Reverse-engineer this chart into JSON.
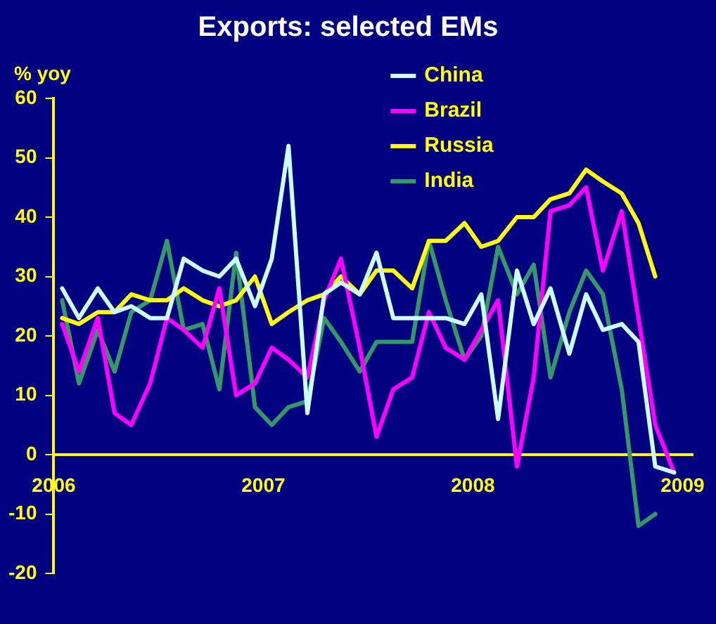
{
  "chart_data": {
    "type": "line",
    "title": "Exports: selected EMs",
    "ylabel": "% yoy",
    "x": [
      2006.04,
      2006.12,
      2006.21,
      2006.29,
      2006.37,
      2006.46,
      2006.54,
      2006.62,
      2006.71,
      2006.79,
      2006.87,
      2006.96,
      2007.04,
      2007.12,
      2007.21,
      2007.29,
      2007.37,
      2007.46,
      2007.54,
      2007.62,
      2007.71,
      2007.79,
      2007.87,
      2007.96,
      2008.04,
      2008.12,
      2008.21,
      2008.29,
      2008.37,
      2008.46,
      2008.54,
      2008.62,
      2008.71,
      2008.79,
      2008.87,
      2008.96
    ],
    "series": [
      {
        "name": "China",
        "color": "#ccffff",
        "values": [
          28,
          23,
          28,
          24,
          25,
          23,
          23,
          33,
          31,
          30,
          33,
          25,
          33,
          52,
          7,
          27,
          29,
          27,
          34,
          23,
          23,
          23,
          23,
          22,
          27,
          6,
          31,
          22,
          28,
          17,
          27,
          21,
          22,
          19,
          -2,
          -3
        ]
      },
      {
        "name": "Brazil",
        "color": "#ff00ff",
        "values": [
          22,
          14,
          23,
          7,
          5,
          12,
          23,
          21,
          18,
          28,
          10,
          12,
          18,
          16,
          13,
          26,
          33,
          18,
          3,
          11,
          13,
          24,
          18,
          16,
          21,
          26,
          -2,
          13,
          41,
          42,
          45,
          31,
          41,
          23,
          5,
          -3
        ]
      },
      {
        "name": "Russia",
        "color": "#ffff00",
        "values": [
          23,
          22,
          24,
          24,
          27,
          26,
          26,
          28,
          26,
          25,
          26,
          30,
          22,
          24,
          26,
          27,
          30,
          27,
          31,
          31,
          28,
          36,
          36,
          39,
          35,
          36,
          40,
          40,
          43,
          44,
          48,
          46,
          44,
          39,
          30,
          null
        ]
      },
      {
        "name": "India",
        "color": "#339966",
        "values": [
          26,
          12,
          21,
          14,
          24,
          26,
          36,
          21,
          22,
          11,
          34,
          8,
          5,
          8,
          9,
          23,
          19,
          14,
          19,
          19,
          19,
          36,
          26,
          16,
          20,
          35,
          27,
          32,
          13,
          24,
          31,
          27,
          11,
          -12,
          -10,
          null
        ]
      }
    ],
    "xlim": [
      2006,
      2009.05
    ],
    "xticks": [
      2006,
      2007,
      2008,
      2009
    ],
    "ylim": [
      -20,
      60
    ],
    "yticks": [
      -20,
      -10,
      0,
      10,
      20,
      30,
      40,
      50,
      60
    ],
    "legend": "top right",
    "grid": false,
    "marker": "none",
    "line_style": "solid"
  }
}
